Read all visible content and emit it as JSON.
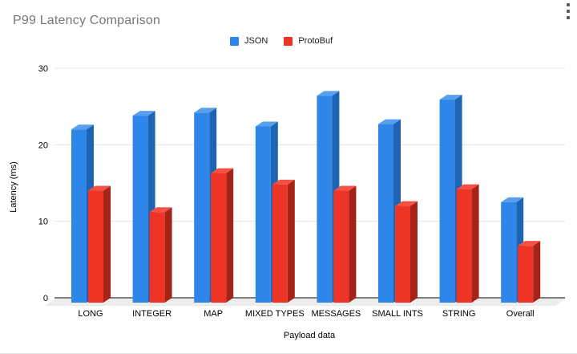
{
  "title": "P99 Latency Comparison",
  "menu": {
    "icon": "kebab-menu-icon"
  },
  "legend": {
    "items": [
      {
        "label": "JSON",
        "color": "#2e86e8"
      },
      {
        "label": "ProtoBuf",
        "color": "#ee3425"
      }
    ]
  },
  "chart_data": {
    "type": "bar",
    "style": "3d-column",
    "title": "P99 Latency Comparison",
    "categories": [
      "LONG",
      "INTEGER",
      "MAP",
      "MIXED TYPES",
      "MESSAGES",
      "SMALL INTS",
      "STRING",
      "Overall"
    ],
    "series": [
      {
        "name": "JSON",
        "color": "#2e86e8",
        "color_top": "#58a0ee",
        "color_side": "#1d64b5",
        "values": [
          22,
          23.8,
          24.2,
          22.4,
          26.4,
          22.7,
          25.9,
          12.5
        ]
      },
      {
        "name": "ProtoBuf",
        "color": "#ee3425",
        "color_top": "#f25144",
        "color_side": "#a62318",
        "values": [
          14,
          11.2,
          16.3,
          14.8,
          14,
          12,
          14.2,
          6.8
        ]
      }
    ],
    "xlabel": "Payload data",
    "ylabel": "Latency (ms)",
    "yticks": [
      0,
      10,
      20,
      30
    ],
    "ylim": [
      0,
      30
    ],
    "grid": true,
    "legend_position": "top",
    "colors": {
      "gridline": "#e3e3e3",
      "baseline": "#808080",
      "floor": "#ededed",
      "tick_text": "#000000",
      "axis_title_text": "#000000"
    }
  }
}
